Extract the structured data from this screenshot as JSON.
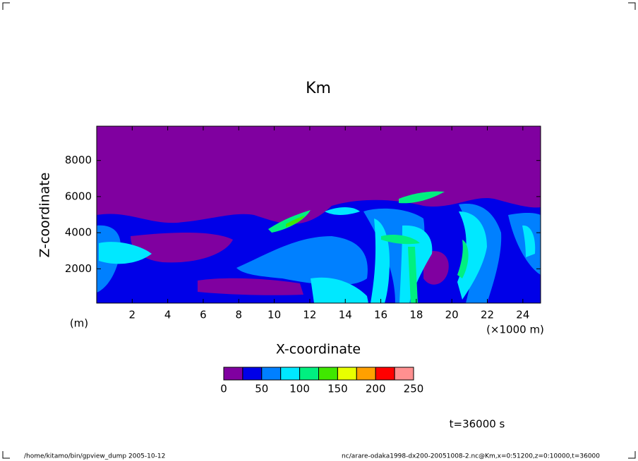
{
  "chart_data": {
    "type": "contour",
    "title": "Km",
    "x_label": "X-coordinate",
    "y_label": "Z-coordinate",
    "x_unit": "(×1000 m)",
    "y_unit": "(m)",
    "xlim": [
      0,
      25
    ],
    "xticks": [
      2,
      4,
      6,
      8,
      10,
      12,
      14,
      16,
      18,
      20,
      22,
      24
    ],
    "ylim": [
      100,
      9900
    ],
    "yticks": [
      2000,
      4000,
      6000,
      8000
    ],
    "levels": [
      0,
      25,
      50,
      75,
      100,
      125,
      150,
      175,
      200,
      225,
      250
    ],
    "colors": [
      "#8000a0",
      "#0000e8",
      "#0080ff",
      "#00e8ff",
      "#00f080",
      "#40e800",
      "#e8ff00",
      "#ffa000",
      "#ff0000",
      "#ff9090"
    ],
    "colorbar_ticks": [
      0,
      50,
      100,
      150,
      200,
      250
    ],
    "time_label": "t=36000 s",
    "footer_left": "/home/kitamo/bin/gpview_dump  2005-10-12",
    "footer_right": "nc/arare-odaka1998-dx200-20051008-2.nc@Km,x=0:51200,z=0:10000,t=36000"
  }
}
